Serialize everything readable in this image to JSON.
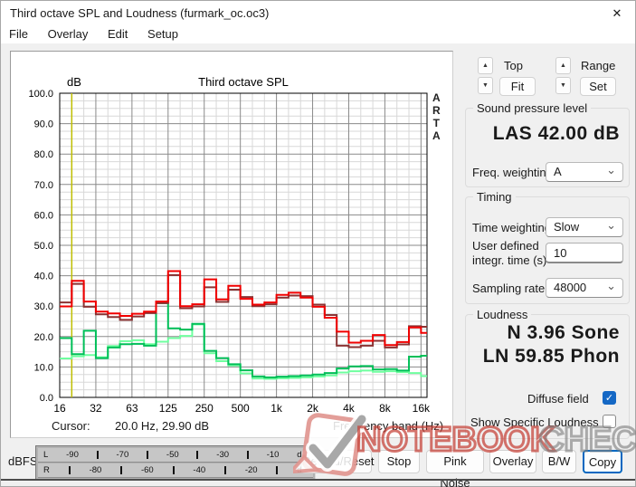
{
  "window": {
    "title": "Third octave SPL and Loudness (furmark_oc.oc3)"
  },
  "icons": {
    "close": "✕",
    "up": "▲",
    "down": "▼",
    "chevron": "⌄",
    "check": "✓"
  },
  "menu": {
    "items": [
      "File",
      "Overlay",
      "Edit",
      "Setup"
    ]
  },
  "chart": {
    "title": "Third octave SPL",
    "y_unit_label": "dB",
    "right_vertical_label": "ARTA",
    "cursor_label": "Cursor:",
    "cursor_value": "20.0 Hz, 29.90 dB",
    "x_axis_label": "Frequency band (Hz)"
  },
  "chart_data": {
    "type": "step-line",
    "title": "Third octave SPL",
    "xlabel": "Frequency band (Hz)",
    "ylabel": "dB",
    "ylim": [
      0,
      100
    ],
    "y_major_step": 10,
    "y_minor_step": 2.5,
    "grid": true,
    "categories": [
      "16",
      "20",
      "25",
      "31.5",
      "40",
      "50",
      "63",
      "80",
      "100",
      "125",
      "160",
      "200",
      "250",
      "315",
      "400",
      "500",
      "630",
      "800",
      "1k",
      "1.25k",
      "1.6k",
      "2k",
      "2.5k",
      "3.15k",
      "4k",
      "5k",
      "6.3k",
      "8k",
      "10k",
      "12.5k",
      "16k"
    ],
    "x_tick_labels": [
      "16",
      "32",
      "63",
      "125",
      "250",
      "500",
      "1k",
      "2k",
      "4k",
      "8k",
      "16k"
    ],
    "cursor": {
      "band": "20",
      "color": "#bfbf00"
    },
    "series": [
      {
        "name": "spl-red",
        "color": "#f10000",
        "values": [
          29.9,
          38.3,
          31.5,
          28.2,
          27.6,
          26.8,
          27.5,
          28.2,
          31.5,
          41.5,
          30.0,
          30.6,
          38.8,
          32.2,
          36.7,
          32.4,
          30.5,
          31.2,
          33.7,
          34.4,
          32.8,
          29.8,
          26.2,
          21.6,
          18.0,
          18.6,
          20.5,
          17.2,
          18.2,
          23.0,
          21.2
        ]
      },
      {
        "name": "spl-dark-red",
        "color": "#8b3333",
        "values": [
          31.2,
          37.3,
          29.8,
          27.3,
          26.4,
          25.5,
          26.6,
          27.7,
          31.0,
          40.2,
          29.3,
          29.9,
          36.2,
          31.4,
          35.4,
          33.0,
          30.0,
          30.6,
          32.8,
          33.5,
          33.3,
          30.5,
          27.1,
          17.0,
          16.5,
          17.0,
          18.6,
          16.4,
          17.4,
          23.4,
          23.2
        ]
      },
      {
        "name": "spl-green",
        "color": "#00bf58",
        "values": [
          19.5,
          14.2,
          21.9,
          12.9,
          16.4,
          17.5,
          17.6,
          17.0,
          31.0,
          22.7,
          22.3,
          24.2,
          15.3,
          12.9,
          10.9,
          8.9,
          6.9,
          6.6,
          6.8,
          7.0,
          7.2,
          7.5,
          8.0,
          9.5,
          10.2,
          10.3,
          9.2,
          9.3,
          8.8,
          13.4,
          13.7
        ]
      },
      {
        "name": "spl-light-green",
        "color": "#6fff9f",
        "values": [
          12.8,
          13.5,
          13.9,
          13.2,
          16.9,
          18.5,
          18.8,
          17.5,
          18.3,
          19.5,
          20.2,
          24.0,
          14.5,
          11.9,
          10.5,
          7.9,
          6.2,
          6.1,
          6.3,
          6.4,
          6.6,
          6.9,
          7.2,
          8.2,
          8.6,
          8.8,
          8.4,
          8.6,
          8.3,
          8.0,
          7.0
        ]
      }
    ]
  },
  "controls": {
    "top_label": "Top",
    "fit_button": "Fit",
    "range_label": "Range",
    "set_button": "Set",
    "spl_group": {
      "title": "Sound pressure level",
      "value": "LAS 42.00 dB",
      "freq_weighting_label": "Freq. weighting",
      "freq_weighting_value": "A"
    },
    "timing_group": {
      "title": "Timing",
      "time_weighting_label": "Time weighting",
      "time_weighting_value": "Slow",
      "integr_label_line1": "User defined",
      "integr_label_line2": "integr. time (s)",
      "integr_value": "10",
      "sampling_label": "Sampling rate",
      "sampling_value": "48000"
    },
    "loudness_group": {
      "title": "Loudness",
      "sone_value": "N 3.96 Sone",
      "phon_value": "LN 59.85 Phon",
      "diffuse_label": "Diffuse field",
      "diffuse_checked": true,
      "specific_label": "Show Specific Loudness",
      "specific_checked": false
    }
  },
  "meter": {
    "label": "dBFS",
    "rows": [
      {
        "name": "L",
        "items": [
          "L",
          "-90",
          "|",
          "-70",
          "|",
          "-50",
          "|",
          "-30",
          "|",
          "-10",
          "dB"
        ]
      },
      {
        "name": "R",
        "items": [
          "R",
          "|",
          "-80",
          "|",
          "-60",
          "|",
          "-40",
          "|",
          "-20",
          "|",
          "dB"
        ]
      }
    ]
  },
  "buttons": [
    "Record/Reset",
    "Stop",
    "Pink Noise",
    "Overlay",
    "B/W",
    "Copy"
  ],
  "watermark": {
    "text_red": "NOTEBOOK",
    "text_gray": "CHECK"
  },
  "colors": {
    "accent": "#0067c0",
    "checkbox_blue": "#1568c5",
    "grid_minor": "#d8d8d8",
    "grid_major": "#8a8a8a"
  }
}
